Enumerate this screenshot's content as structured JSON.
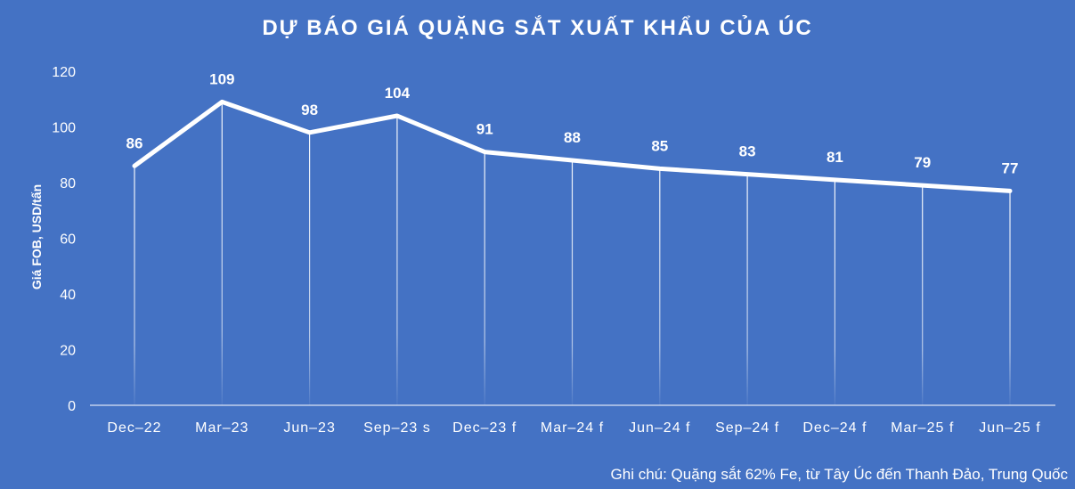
{
  "chart_data": {
    "type": "line",
    "title": "DỰ BÁO GIÁ QUẶNG SẮT XUẤT KHẨU CỦA ÚC",
    "ylabel": "Giá FOB, USD/tấn",
    "xlabel": "",
    "ylim": [
      0,
      120
    ],
    "yticks": [
      0,
      20,
      40,
      60,
      80,
      100,
      120
    ],
    "categories": [
      "Dec–22",
      "Mar–23",
      "Jun–23",
      "Sep–23 s",
      "Dec–23 f",
      "Mar–24 f",
      "Jun–24 f",
      "Sep–24 f",
      "Dec–24 f",
      "Mar–25 f",
      "Jun–25 f"
    ],
    "series": [
      {
        "values": [
          86,
          109,
          98,
          104,
          91,
          88,
          85,
          83,
          81,
          79,
          77
        ]
      }
    ],
    "data_labels": true,
    "drop_lines": true,
    "grid": false,
    "footnote": "Ghi chú: Quặng sắt 62% Fe, từ Tây Úc đến Thanh Đảo, Trung Quốc"
  },
  "colors": {
    "background": "#4472C4",
    "line": "#FFFFFF",
    "text": "#FFFFFF"
  }
}
